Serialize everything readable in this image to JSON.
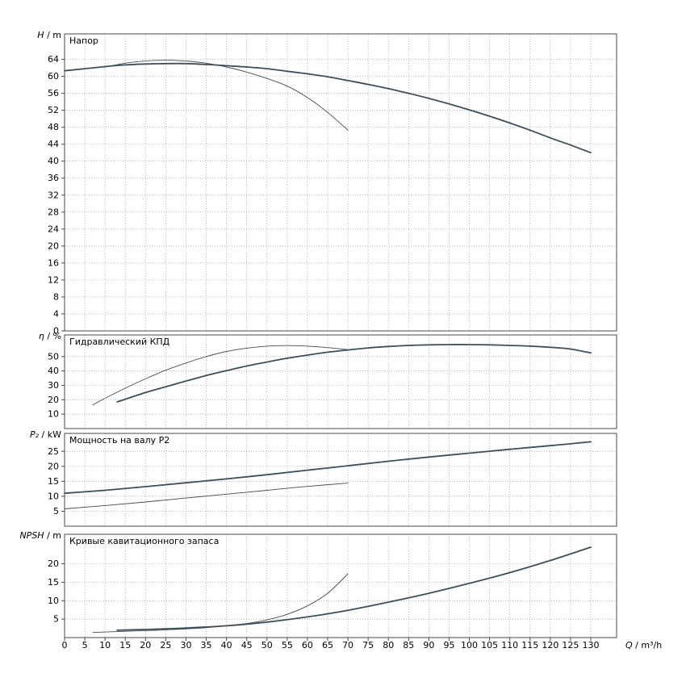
{
  "colors": {
    "background": "#ffffff",
    "frame": "#4a4a4a",
    "grid": "#9a9a9a",
    "curve_thick": "#3d4f5a",
    "curve_thin": "#4a4a4a",
    "text": "#000000"
  },
  "x_axis": {
    "symbol": "Q",
    "unit": "m³/h",
    "label": "Q / m³/h",
    "min": 0,
    "max": 130,
    "ticks": [
      0,
      5,
      10,
      15,
      20,
      25,
      30,
      35,
      40,
      45,
      50,
      55,
      60,
      65,
      70,
      75,
      80,
      85,
      90,
      95,
      100,
      105,
      110,
      115,
      120,
      125,
      130
    ]
  },
  "chart_data": [
    {
      "type": "line",
      "title": "Напор",
      "ylabel_symbol": "H",
      "ylabel_unit": "m",
      "ylabel": "H / m",
      "ylim": [
        0,
        70
      ],
      "yticks": [
        0,
        4,
        8,
        12,
        16,
        20,
        24,
        28,
        32,
        36,
        40,
        44,
        48,
        52,
        56,
        60,
        64
      ],
      "grid": true,
      "series": [
        {
          "name": "head-curve-main",
          "weight": "thick",
          "points": [
            [
              0,
              61.3
            ],
            [
              5,
              61.8
            ],
            [
              10,
              62.3
            ],
            [
              15,
              62.7
            ],
            [
              20,
              62.9
            ],
            [
              25,
              63.0
            ],
            [
              30,
              63.0
            ],
            [
              35,
              62.8
            ],
            [
              40,
              62.5
            ],
            [
              45,
              62.2
            ],
            [
              50,
              61.8
            ],
            [
              55,
              61.2
            ],
            [
              60,
              60.6
            ],
            [
              65,
              59.9
            ],
            [
              70,
              59.0
            ],
            [
              75,
              58.1
            ],
            [
              80,
              57.1
            ],
            [
              85,
              56.0
            ],
            [
              90,
              54.8
            ],
            [
              95,
              53.5
            ],
            [
              100,
              52.1
            ],
            [
              105,
              50.6
            ],
            [
              110,
              49.0
            ],
            [
              115,
              47.3
            ],
            [
              120,
              45.5
            ],
            [
              125,
              43.8
            ],
            [
              130,
              42.0
            ]
          ]
        },
        {
          "name": "head-curve-secondary",
          "weight": "thin",
          "points": [
            [
              10,
              62.2
            ],
            [
              15,
              63.1
            ],
            [
              20,
              63.6
            ],
            [
              25,
              63.8
            ],
            [
              30,
              63.6
            ],
            [
              35,
              63.1
            ],
            [
              40,
              62.2
            ],
            [
              45,
              61.0
            ],
            [
              50,
              59.5
            ],
            [
              55,
              57.7
            ],
            [
              60,
              55.0
            ],
            [
              65,
              51.5
            ],
            [
              70,
              47.3
            ]
          ]
        }
      ]
    },
    {
      "type": "line",
      "title": "Гидравлический КПД",
      "ylabel_symbol": "η",
      "ylabel_unit": "%",
      "ylabel": "η / %",
      "ylim": [
        0,
        65
      ],
      "yticks": [
        10,
        20,
        30,
        40,
        50
      ],
      "grid": true,
      "series": [
        {
          "name": "efficiency-curve-main",
          "weight": "thick",
          "points": [
            [
              13,
              18.5
            ],
            [
              20,
              25
            ],
            [
              25,
              29
            ],
            [
              30,
              33
            ],
            [
              35,
              36.8
            ],
            [
              40,
              40.2
            ],
            [
              45,
              43.4
            ],
            [
              50,
              46.2
            ],
            [
              55,
              48.8
            ],
            [
              60,
              51
            ],
            [
              65,
              53
            ],
            [
              70,
              54.6
            ],
            [
              75,
              56
            ],
            [
              80,
              57
            ],
            [
              85,
              57.7
            ],
            [
              90,
              58.1
            ],
            [
              95,
              58.3
            ],
            [
              100,
              58.3
            ],
            [
              105,
              58.1
            ],
            [
              110,
              57.7
            ],
            [
              115,
              57.2
            ],
            [
              120,
              56.4
            ],
            [
              125,
              55.2
            ],
            [
              130,
              52.5
            ]
          ]
        },
        {
          "name": "efficiency-curve-secondary",
          "weight": "thin",
          "points": [
            [
              7,
              16.5
            ],
            [
              10,
              21
            ],
            [
              15,
              28
            ],
            [
              20,
              34.5
            ],
            [
              25,
              40.5
            ],
            [
              30,
              45.5
            ],
            [
              35,
              50
            ],
            [
              40,
              53.5
            ],
            [
              45,
              55.8
            ],
            [
              50,
              57.2
            ],
            [
              55,
              57.6
            ],
            [
              60,
              57.2
            ],
            [
              65,
              56.2
            ],
            [
              70,
              54.8
            ]
          ]
        }
      ]
    },
    {
      "type": "line",
      "title": "Мощность на валу P2",
      "ylabel_symbol": "P₂",
      "ylabel_unit": "kW",
      "ylabel": "P₂ / kW",
      "ylim": [
        0,
        31
      ],
      "yticks": [
        5,
        10,
        15,
        20,
        25
      ],
      "grid": true,
      "series": [
        {
          "name": "shaft-power-curve-main",
          "weight": "thick",
          "points": [
            [
              0,
              11
            ],
            [
              10,
              12
            ],
            [
              20,
              13.2
            ],
            [
              30,
              14.5
            ],
            [
              40,
              15.8
            ],
            [
              50,
              17.2
            ],
            [
              60,
              18.7
            ],
            [
              70,
              20.2
            ],
            [
              80,
              21.7
            ],
            [
              90,
              23.1
            ],
            [
              100,
              24.4
            ],
            [
              110,
              25.7
            ],
            [
              120,
              26.9
            ],
            [
              130,
              28.2
            ]
          ]
        },
        {
          "name": "shaft-power-curve-secondary",
          "weight": "thin",
          "points": [
            [
              0,
              5.8
            ],
            [
              10,
              6.9
            ],
            [
              20,
              8.1
            ],
            [
              30,
              9.4
            ],
            [
              40,
              10.7
            ],
            [
              50,
              12
            ],
            [
              60,
              13.3
            ],
            [
              70,
              14.4
            ]
          ]
        }
      ]
    },
    {
      "type": "line",
      "title": "Кривые кавитационного запаса",
      "ylabel_symbol": "NPSH",
      "ylabel_unit": "m",
      "ylabel": "NPSH / m",
      "ylim": [
        0,
        28
      ],
      "yticks": [
        5,
        10,
        15,
        20
      ],
      "grid": true,
      "series": [
        {
          "name": "npsh-curve-main",
          "weight": "thick",
          "points": [
            [
              13,
              2.0
            ],
            [
              20,
              2.2
            ],
            [
              30,
              2.6
            ],
            [
              40,
              3.2
            ],
            [
              50,
              4.2
            ],
            [
              60,
              5.6
            ],
            [
              70,
              7.4
            ],
            [
              80,
              9.6
            ],
            [
              90,
              12.0
            ],
            [
              100,
              14.7
            ],
            [
              110,
              17.6
            ],
            [
              120,
              20.9
            ],
            [
              130,
              24.5
            ]
          ]
        },
        {
          "name": "npsh-curve-secondary",
          "weight": "thin",
          "points": [
            [
              7,
              1.4
            ],
            [
              15,
              1.7
            ],
            [
              25,
              2.1
            ],
            [
              35,
              2.7
            ],
            [
              45,
              3.8
            ],
            [
              50,
              4.8
            ],
            [
              55,
              6.3
            ],
            [
              60,
              8.6
            ],
            [
              65,
              12.0
            ],
            [
              70,
              17.3
            ]
          ]
        }
      ]
    }
  ]
}
